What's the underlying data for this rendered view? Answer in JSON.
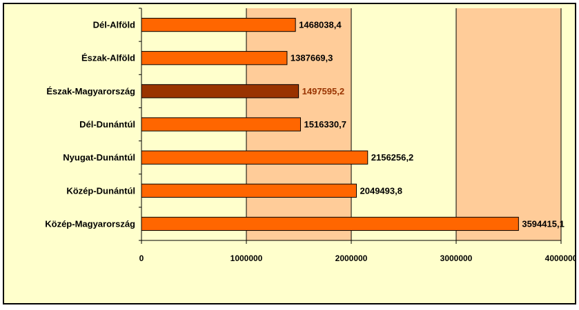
{
  "chart_data": {
    "type": "bar",
    "orientation": "horizontal",
    "categories": [
      "Dél-Alföld",
      "Észak-Alföld",
      "Észak-Magyarország",
      "Dél-Dunántúl",
      "Nyugat-Dunántúl",
      "Közép-Dunántúl",
      "Közép-Magyarország"
    ],
    "values": [
      1468038.4,
      1387669.3,
      1497595.2,
      1516330.7,
      2156256.2,
      2049493.8,
      3594415.1
    ],
    "data_labels": [
      "1468038,4",
      "1387669,3",
      "1497595,2",
      "1516330,7",
      "2156256,2",
      "2049493,8",
      "3594415,1"
    ],
    "highlight_index": 2,
    "xlim": [
      0,
      4000000
    ],
    "x_ticks": [
      0,
      1000000,
      2000000,
      3000000,
      4000000
    ],
    "x_tick_labels": [
      "0",
      "1000000",
      "2000000",
      "3000000",
      "4000000"
    ],
    "gridlines": true,
    "legend": "none",
    "colors": {
      "bar": "#ff6600",
      "highlight_bar": "#993300",
      "highlight_label": "#993300",
      "plot_background_alternating": [
        "#ffffcc",
        "#ffcc99"
      ],
      "chart_background": "#ffffcc"
    },
    "title": "",
    "xlabel": "",
    "ylabel": ""
  }
}
